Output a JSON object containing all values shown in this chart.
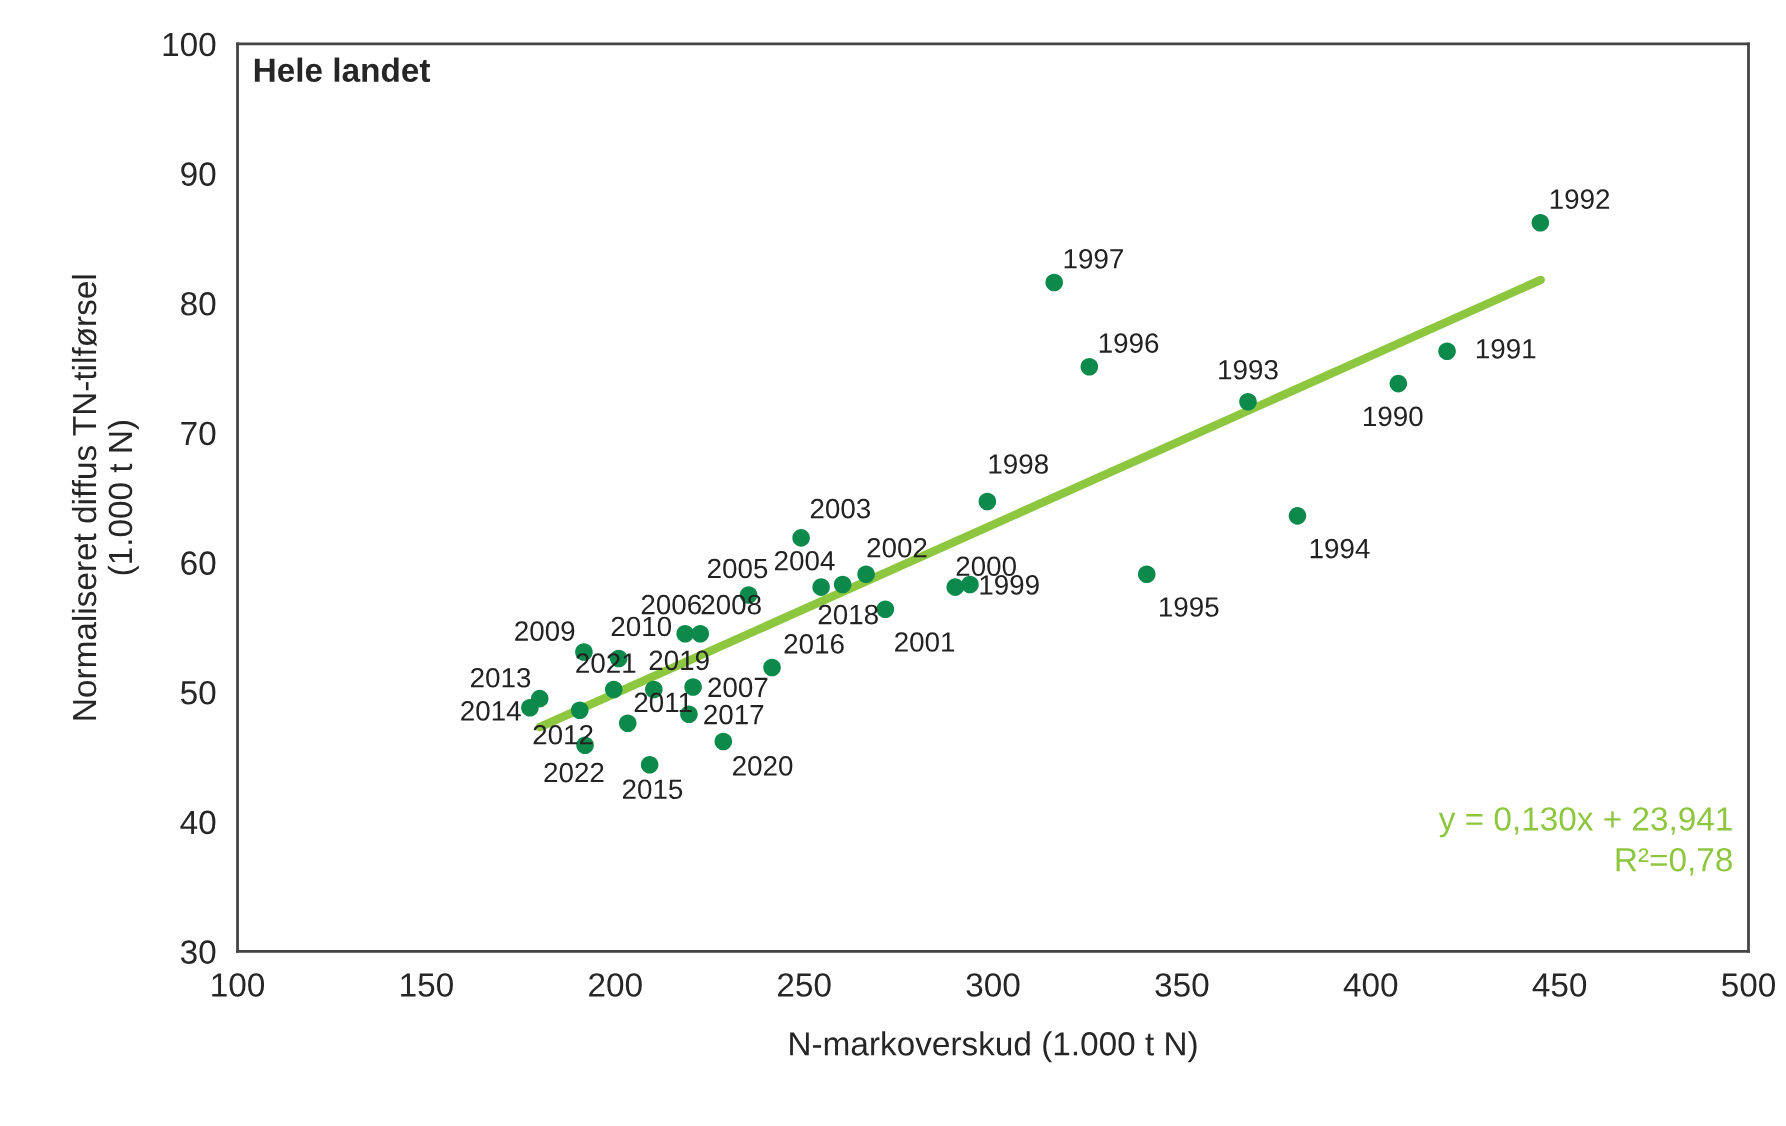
{
  "chart_data": {
    "type": "scatter",
    "xlabel": "N-markoverskud (1.000 t N)",
    "ylabel": "Normaliseret diffus TN-tilførsel\n(1.000 t N)",
    "xlim": [
      100,
      500
    ],
    "xticks": [
      100,
      150,
      200,
      250,
      300,
      350,
      400,
      450,
      500
    ],
    "ylim": [
      30,
      100
    ],
    "yticks": [
      30,
      40,
      50,
      60,
      70,
      80,
      90,
      100
    ],
    "grid": false,
    "legend": false,
    "marker": "circle",
    "annotations": [
      "Hele landet",
      "y = 0,130x + 23,941",
      "R²=0,78",
      {
        "text": "1990",
        "x": 407.3,
        "y": 73.8
      },
      {
        "text": "1991",
        "x": 420.2,
        "y": 76.3
      },
      {
        "text": "1992",
        "x": 444.9,
        "y": 86.2
      },
      {
        "text": "1993",
        "x": 367.5,
        "y": 72.4
      },
      {
        "text": "1994",
        "x": 380.6,
        "y": 63.6
      },
      {
        "text": "1995",
        "x": 340.7,
        "y": 59.1
      },
      {
        "text": "1996",
        "x": 325.5,
        "y": 75.1
      },
      {
        "text": "1997",
        "x": 316.2,
        "y": 81.6
      },
      {
        "text": "1998",
        "x": 298.5,
        "y": 64.7
      },
      {
        "text": "1999",
        "x": 293.9,
        "y": 58.3
      },
      {
        "text": "2000",
        "x": 290.0,
        "y": 58.1
      },
      {
        "text": "2001",
        "x": 271.5,
        "y": 56.4
      },
      {
        "text": "2002",
        "x": 266.4,
        "y": 59.1
      },
      {
        "text": "2003",
        "x": 249.2,
        "y": 61.9
      },
      {
        "text": "2004",
        "x": 254.5,
        "y": 58.1
      },
      {
        "text": "2005",
        "x": 235.3,
        "y": 57.5
      },
      {
        "text": "2006",
        "x": 218.5,
        "y": 54.5
      },
      {
        "text": "2007",
        "x": 220.6,
        "y": 50.4
      },
      {
        "text": "2008",
        "x": 222.5,
        "y": 54.5
      },
      {
        "text": "2009",
        "x": 191.7,
        "y": 53.1
      },
      {
        "text": "2010",
        "x": 200.9,
        "y": 52.6
      },
      {
        "text": "2011",
        "x": 203.3,
        "y": 47.6
      },
      {
        "text": "2012",
        "x": 190.6,
        "y": 48.6
      },
      {
        "text": "2013",
        "x": 180.0,
        "y": 49.5
      },
      {
        "text": "2014",
        "x": 177.4,
        "y": 48.8
      },
      {
        "text": "2015",
        "x": 209.1,
        "y": 44.4
      },
      {
        "text": "2016",
        "x": 241.5,
        "y": 51.9
      },
      {
        "text": "2017",
        "x": 219.5,
        "y": 48.3
      },
      {
        "text": "2018",
        "x": 260.2,
        "y": 58.3
      },
      {
        "text": "2019",
        "x": 210.2,
        "y": 50.2
      },
      {
        "text": "2020",
        "x": 228.6,
        "y": 46.2
      },
      {
        "text": "2021",
        "x": 199.6,
        "y": 50.2
      },
      {
        "text": "2022",
        "x": 192.0,
        "y": 45.9
      }
    ],
    "series": [
      {
        "color": "#0b8a4b",
        "x": [
          407.3,
          420.2,
          444.9,
          367.5,
          380.6,
          340.7,
          325.5,
          316.2,
          298.5,
          293.9,
          290.0,
          271.5,
          266.4,
          249.2,
          254.5,
          235.3,
          218.5,
          220.6,
          222.5,
          191.7,
          200.9,
          203.3,
          190.6,
          180.0,
          177.4,
          209.1,
          241.5,
          219.5,
          260.2,
          210.2,
          228.6,
          199.6,
          192.0
        ],
        "values": [
          73.8,
          76.3,
          86.2,
          72.4,
          63.6,
          59.1,
          75.1,
          81.6,
          64.7,
          58.3,
          58.1,
          56.4,
          59.1,
          61.9,
          58.1,
          57.5,
          54.5,
          50.4,
          54.5,
          53.1,
          52.6,
          47.6,
          48.6,
          49.5,
          48.8,
          44.4,
          51.9,
          48.3,
          58.3,
          50.2,
          46.2,
          50.2,
          45.9
        ]
      },
      {
        "type": "line",
        "color": "#8dc63f",
        "x": [
          180,
          445
        ],
        "values": [
          47.3,
          81.8
        ],
        "line_style": "solid",
        "marker": "none"
      }
    ]
  }
}
